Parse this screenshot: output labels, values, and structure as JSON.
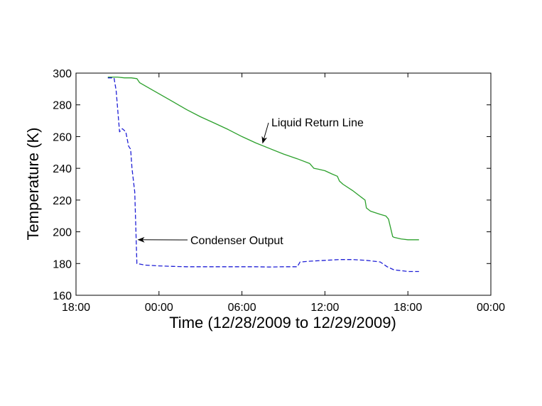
{
  "chart_data": {
    "type": "line",
    "title": "",
    "xlabel": "Time (12/28/2009 to 12/29/2009)",
    "ylabel": "Temperature (K)",
    "xlim": [
      18,
      48
    ],
    "ylim": [
      160,
      300
    ],
    "x_unit": "hours from 12/28/2009 00:00",
    "xticks": [
      {
        "value": 18,
        "label": "18:00"
      },
      {
        "value": 24,
        "label": "00:00"
      },
      {
        "value": 30,
        "label": "06:00"
      },
      {
        "value": 36,
        "label": "12:00"
      },
      {
        "value": 42,
        "label": "18:00"
      },
      {
        "value": 48,
        "label": "00:00"
      }
    ],
    "yticks": [
      {
        "value": 160,
        "label": "160"
      },
      {
        "value": 180,
        "label": "180"
      },
      {
        "value": 200,
        "label": "200"
      },
      {
        "value": 220,
        "label": "220"
      },
      {
        "value": 240,
        "label": "240"
      },
      {
        "value": 260,
        "label": "260"
      },
      {
        "value": 280,
        "label": "280"
      },
      {
        "value": 300,
        "label": "300"
      }
    ],
    "grid": false,
    "legend": "none",
    "series": [
      {
        "name": "Liquid Return Line",
        "color": "#2ca02c",
        "style": "solid",
        "x": [
          20.3,
          21.0,
          21.5,
          22.0,
          22.4,
          22.6,
          23.0,
          24.0,
          25.0,
          26.0,
          27.0,
          28.0,
          29.0,
          30.0,
          31.0,
          32.0,
          33.0,
          34.0,
          34.9,
          35.2,
          35.5,
          36.0,
          36.5,
          36.9,
          37.05,
          37.3,
          38.0,
          38.9,
          39.0,
          39.3,
          40.0,
          40.4,
          40.6,
          40.9,
          41.0,
          41.5,
          42.0,
          42.8
        ],
        "y": [
          297.5,
          297.5,
          297.0,
          297.0,
          296.5,
          294.0,
          292.0,
          287.0,
          282.0,
          277.0,
          272.5,
          268.5,
          264.5,
          260.0,
          256.0,
          252.5,
          249.0,
          246.0,
          243.0,
          240.0,
          239.5,
          238.5,
          236.5,
          235.0,
          232.0,
          230.0,
          226.0,
          220.0,
          215.0,
          213.0,
          211.0,
          210.0,
          208.0,
          197.0,
          196.5,
          195.5,
          195.0,
          195.0
        ]
      },
      {
        "name": "Condenser Output",
        "color": "#1f1fd6",
        "style": "dashed",
        "x": [
          20.3,
          20.75,
          20.9,
          21.15,
          21.35,
          21.6,
          21.8,
          21.95,
          22.05,
          22.25,
          22.4,
          23.0,
          24.0,
          25.0,
          26.0,
          27.0,
          28.0,
          29.0,
          30.0,
          31.0,
          32.0,
          33.0,
          34.0,
          34.2,
          35.0,
          36.0,
          37.0,
          38.0,
          39.0,
          40.0,
          40.5,
          41.0,
          41.5,
          42.0,
          42.8
        ],
        "y": [
          297.0,
          297.0,
          289.0,
          263.0,
          265.0,
          263.0,
          254.0,
          252.0,
          240.0,
          225.0,
          180.0,
          179.0,
          178.5,
          178.2,
          178.0,
          178.0,
          178.0,
          178.0,
          178.0,
          178.0,
          177.8,
          178.0,
          178.0,
          181.0,
          181.5,
          182.0,
          182.5,
          182.5,
          182.0,
          181.0,
          178.0,
          176.0,
          175.5,
          175.0,
          175.0
        ]
      }
    ],
    "annotations": [
      {
        "text": "Liquid Return Line",
        "arrow_to": [
          31.5,
          256.0
        ]
      },
      {
        "text": "Condenser Output",
        "arrow_to": [
          22.5,
          195.0
        ]
      }
    ]
  }
}
